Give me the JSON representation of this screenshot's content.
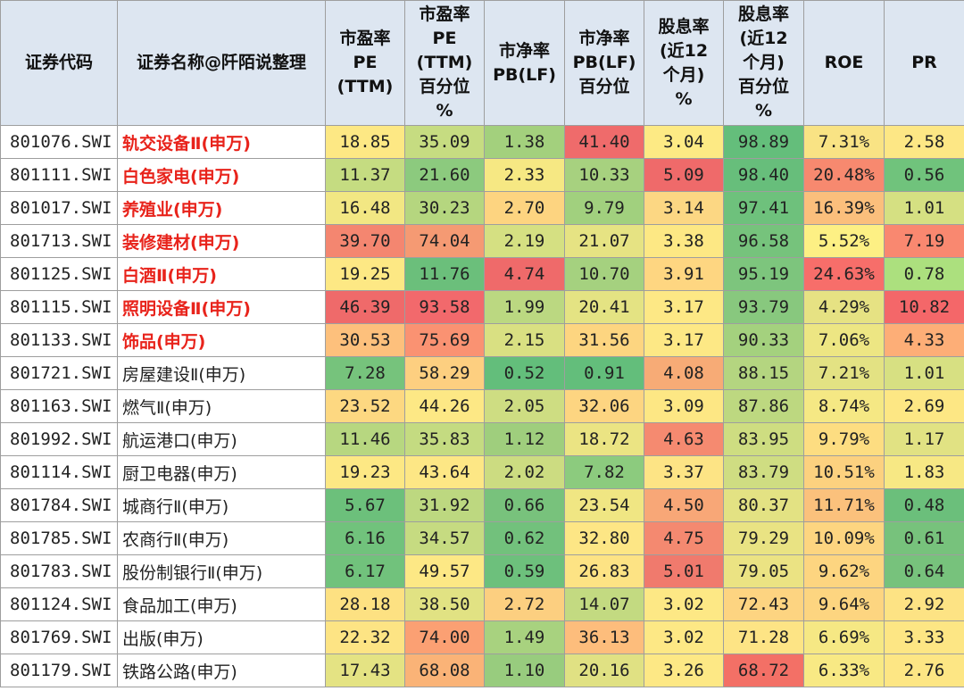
{
  "header": [
    [
      "证券代码"
    ],
    [
      "证券名称@阡陌说整理"
    ],
    [
      "市盈率",
      "PE",
      "(TTM)"
    ],
    [
      "市盈率",
      "PE",
      "(TTM)",
      "百分位",
      "%"
    ],
    [
      "市净率",
      "PB(LF)"
    ],
    [
      "市净率",
      "PB(LF)",
      "百分位"
    ],
    [
      "股息率",
      "(近12",
      "个月)",
      "%"
    ],
    [
      "股息率",
      "(近12",
      "个月)",
      "百分位",
      "%"
    ],
    [
      "ROE"
    ],
    [
      "PR"
    ]
  ],
  "rows": [
    {
      "code": "801076.SWI",
      "name": "轨交设备Ⅱ(申万)",
      "highlight": true,
      "pe": "18.85",
      "pe_pct": "35.09",
      "pb": "1.38",
      "pb_pct": "41.40",
      "dy": "3.04",
      "dy_pct": "98.89",
      "roe": "7.31%",
      "pr": "2.58"
    },
    {
      "code": "801111.SWI",
      "name": "白色家电(申万)",
      "highlight": true,
      "pe": "11.37",
      "pe_pct": "21.60",
      "pb": "2.33",
      "pb_pct": "10.33",
      "dy": "5.09",
      "dy_pct": "98.40",
      "roe": "20.48%",
      "pr": "0.56"
    },
    {
      "code": "801017.SWI",
      "name": "养殖业(申万)",
      "highlight": true,
      "pe": "16.48",
      "pe_pct": "30.23",
      "pb": "2.70",
      "pb_pct": "9.79",
      "dy": "3.14",
      "dy_pct": "97.41",
      "roe": "16.39%",
      "pr": "1.01"
    },
    {
      "code": "801713.SWI",
      "name": "装修建材(申万)",
      "highlight": true,
      "pe": "39.70",
      "pe_pct": "74.04",
      "pb": "2.19",
      "pb_pct": "21.07",
      "dy": "3.38",
      "dy_pct": "96.58",
      "roe": "5.52%",
      "pr": "7.19"
    },
    {
      "code": "801125.SWI",
      "name": "白酒Ⅱ(申万)",
      "highlight": true,
      "pe": "19.25",
      "pe_pct": "11.76",
      "pb": "4.74",
      "pb_pct": "10.70",
      "dy": "3.91",
      "dy_pct": "95.19",
      "roe": "24.63%",
      "pr": "0.78"
    },
    {
      "code": "801115.SWI",
      "name": "照明设备Ⅱ(申万)",
      "highlight": true,
      "pe": "46.39",
      "pe_pct": "93.58",
      "pb": "1.99",
      "pb_pct": "20.41",
      "dy": "3.17",
      "dy_pct": "93.79",
      "roe": "4.29%",
      "pr": "10.82"
    },
    {
      "code": "801133.SWI",
      "name": "饰品(申万)",
      "highlight": true,
      "pe": "30.53",
      "pe_pct": "75.69",
      "pb": "2.15",
      "pb_pct": "31.56",
      "dy": "3.17",
      "dy_pct": "90.33",
      "roe": "7.06%",
      "pr": "4.33"
    },
    {
      "code": "801721.SWI",
      "name": "房屋建设Ⅱ(申万)",
      "highlight": false,
      "pe": "7.28",
      "pe_pct": "58.29",
      "pb": "0.52",
      "pb_pct": "0.91",
      "dy": "4.08",
      "dy_pct": "88.15",
      "roe": "7.21%",
      "pr": "1.01"
    },
    {
      "code": "801163.SWI",
      "name": "燃气Ⅱ(申万)",
      "highlight": false,
      "pe": "23.52",
      "pe_pct": "44.26",
      "pb": "2.05",
      "pb_pct": "32.06",
      "dy": "3.09",
      "dy_pct": "87.86",
      "roe": "8.74%",
      "pr": "2.69"
    },
    {
      "code": "801992.SWI",
      "name": "航运港口(申万)",
      "highlight": false,
      "pe": "11.46",
      "pe_pct": "35.83",
      "pb": "1.12",
      "pb_pct": "18.72",
      "dy": "4.63",
      "dy_pct": "83.95",
      "roe": "9.79%",
      "pr": "1.17"
    },
    {
      "code": "801114.SWI",
      "name": "厨卫电器(申万)",
      "highlight": false,
      "pe": "19.23",
      "pe_pct": "43.64",
      "pb": "2.02",
      "pb_pct": "7.82",
      "dy": "3.37",
      "dy_pct": "83.79",
      "roe": "10.51%",
      "pr": "1.83"
    },
    {
      "code": "801784.SWI",
      "name": "城商行Ⅱ(申万)",
      "highlight": false,
      "pe": "5.67",
      "pe_pct": "31.92",
      "pb": "0.66",
      "pb_pct": "23.54",
      "dy": "4.50",
      "dy_pct": "80.37",
      "roe": "11.71%",
      "pr": "0.48"
    },
    {
      "code": "801785.SWI",
      "name": "农商行Ⅱ(申万)",
      "highlight": false,
      "pe": "6.16",
      "pe_pct": "34.57",
      "pb": "0.62",
      "pb_pct": "32.80",
      "dy": "4.75",
      "dy_pct": "79.29",
      "roe": "10.09%",
      "pr": "0.61"
    },
    {
      "code": "801783.SWI",
      "name": "股份制银行Ⅱ(申万)",
      "highlight": false,
      "pe": "6.17",
      "pe_pct": "49.57",
      "pb": "0.59",
      "pb_pct": "26.83",
      "dy": "5.01",
      "dy_pct": "79.05",
      "roe": "9.62%",
      "pr": "0.64"
    },
    {
      "code": "801124.SWI",
      "name": "食品加工(申万)",
      "highlight": false,
      "pe": "28.18",
      "pe_pct": "38.50",
      "pb": "2.72",
      "pb_pct": "14.07",
      "dy": "3.02",
      "dy_pct": "72.43",
      "roe": "9.64%",
      "pr": "2.92"
    },
    {
      "code": "801769.SWI",
      "name": "出版(申万)",
      "highlight": false,
      "pe": "22.32",
      "pe_pct": "74.00",
      "pb": "1.49",
      "pb_pct": "36.13",
      "dy": "3.02",
      "dy_pct": "71.28",
      "roe": "6.69%",
      "pr": "3.33"
    },
    {
      "code": "801179.SWI",
      "name": "铁路公路(申万)",
      "highlight": false,
      "pe": "17.43",
      "pe_pct": "68.08",
      "pb": "1.10",
      "pb_pct": "20.16",
      "dy": "3.26",
      "dy_pct": "68.72",
      "roe": "6.33%",
      "pr": "2.76"
    }
  ],
  "cell_colors": [
    [
      "#fde884",
      "#c6dc81",
      "#a3d07d",
      "#ef6b6b",
      "#fdea84",
      "#64be7b",
      "#f9e384",
      "#fde785"
    ],
    [
      "#c5dc81",
      "#8cca7e",
      "#f6e883",
      "#a7d17f",
      "#ef6a6a",
      "#67be7b",
      "#f7896f",
      "#70c37c"
    ],
    [
      "#f2e783",
      "#b5d67f",
      "#fdd480",
      "#a1d07e",
      "#fcd783",
      "#6ec17c",
      "#fbbf7c",
      "#d5e082"
    ],
    [
      "#f48670",
      "#f59a73",
      "#d5e082",
      "#e6e383",
      "#fde884",
      "#76c37c",
      "#fdf084",
      "#f98870"
    ],
    [
      "#fde884",
      "#6bbf7b",
      "#ef6a6a",
      "#a5d17f",
      "#fed681",
      "#7dc57d",
      "#f76e6a",
      "#ace07e"
    ],
    [
      "#ef6a6a",
      "#f2696c",
      "#bbd881",
      "#e4e383",
      "#fde885",
      "#88c87e",
      "#e6e283",
      "#f46769"
    ],
    [
      "#fdc07c",
      "#fa9272",
      "#d9e082",
      "#fdd580",
      "#fde885",
      "#a4d17e",
      "#ede683",
      "#fdae77"
    ],
    [
      "#76c37c",
      "#fdcf80",
      "#63be7b",
      "#63be7b",
      "#f7ab76",
      "#b4d580",
      "#e3e283",
      "#d7e082"
    ],
    [
      "#fdd881",
      "#fde885",
      "#cedd82",
      "#fdd581",
      "#fde784",
      "#bdd880",
      "#f5e884",
      "#fde784"
    ],
    [
      "#b7d780",
      "#c4db81",
      "#9fce7d",
      "#ebe483",
      "#f58a70",
      "#cedd81",
      "#fddd81",
      "#e1e283"
    ],
    [
      "#fde884",
      "#fde785",
      "#ccdc81",
      "#8ccb7e",
      "#fde485",
      "#cfdd82",
      "#fcd17f",
      "#f7e884"
    ],
    [
      "#6cc07b",
      "#bdd880",
      "#78c27c",
      "#f0e683",
      "#f8a777",
      "#e3e283",
      "#fbc17c",
      "#6bbf7b"
    ],
    [
      "#71c27c",
      "#c6db81",
      "#72c17c",
      "#fde685",
      "#f48970",
      "#e9e383",
      "#fdd580",
      "#77c27c"
    ],
    [
      "#71c27c",
      "#fde885",
      "#6dc07c",
      "#fde384",
      "#f07a6d",
      "#ebe383",
      "#fdd580",
      "#77c27c"
    ],
    [
      "#fde182",
      "#e1e283",
      "#fccf80",
      "#c3da81",
      "#fde885",
      "#fdd481",
      "#fdd580",
      "#fde384"
    ],
    [
      "#fde484",
      "#fba073",
      "#a8d27f",
      "#fdbd7c",
      "#fde885",
      "#fde485",
      "#f6e884",
      "#fde684"
    ],
    [
      "#e4e383",
      "#fab377",
      "#98cc7e",
      "#e0e183",
      "#fde885",
      "#f37066",
      "#f8e984",
      "#fde684"
    ]
  ]
}
